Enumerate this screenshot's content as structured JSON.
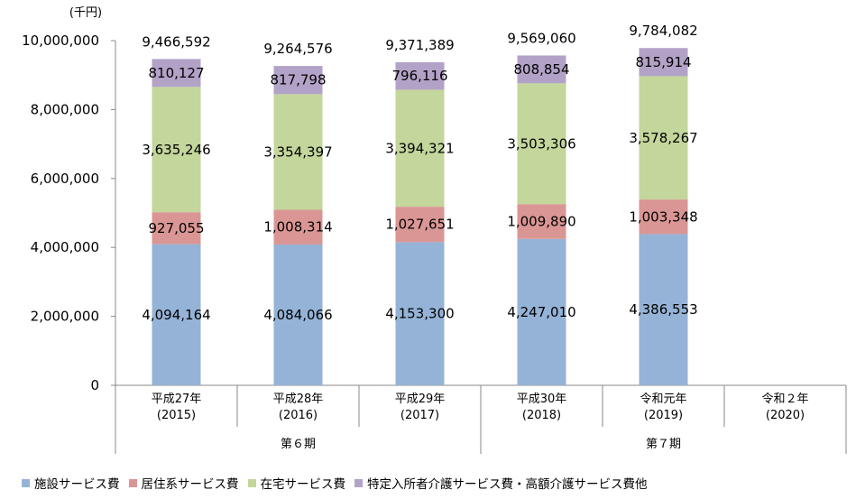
{
  "chart_data": {
    "type": "bar",
    "stacked": true,
    "unit_label": "(千円)",
    "categories": [
      {
        "label": "平成27年",
        "year": "(2015)"
      },
      {
        "label": "平成28年",
        "year": "(2016)"
      },
      {
        "label": "平成29年",
        "year": "(2017)"
      },
      {
        "label": "平成30年",
        "year": "(2018)"
      },
      {
        "label": "令和元年",
        "year": "(2019)"
      },
      {
        "label": "令和２年",
        "year": "(2020)"
      }
    ],
    "groups": [
      {
        "label": "第６期",
        "categories": [
          0,
          1,
          2
        ]
      },
      {
        "label": "第７期",
        "categories": [
          3,
          4,
          5
        ]
      }
    ],
    "series": [
      {
        "name": "施設サービス費",
        "color": "#95b3d7",
        "values": [
          4094164,
          4084066,
          4153300,
          4247010,
          4386553,
          null
        ],
        "labels": [
          "4,094,164",
          "4,084,066",
          "4,153,300",
          "4,247,010",
          "4,386,553",
          null
        ]
      },
      {
        "name": "居住系サービス費",
        "color": "#da9694",
        "values": [
          927055,
          1008314,
          1027651,
          1009890,
          1003348,
          null
        ],
        "labels": [
          "927,055",
          "1,008,314",
          "1,027,651",
          "1,009,890",
          "1,003,348",
          null
        ]
      },
      {
        "name": "在宅サービス費",
        "color": "#c3d69b",
        "values": [
          3635246,
          3354397,
          3394321,
          3503306,
          3578267,
          null
        ],
        "labels": [
          "3,635,246",
          "3,354,397",
          "3,394,321",
          "3,503,306",
          "3,578,267",
          null
        ]
      },
      {
        "name": "特定入所者介護サービス費・高額介護サービス費他",
        "color": "#b3a2c7",
        "values": [
          810127,
          817798,
          796116,
          808854,
          815914,
          null
        ],
        "labels": [
          "810,127",
          "817,798",
          "796,116",
          "808,854",
          "815,914",
          null
        ]
      }
    ],
    "totals": [
      9466592,
      9264576,
      9371389,
      9569060,
      9784082,
      null
    ],
    "total_labels": [
      "9,466,592",
      "9,264,576",
      "9,371,389",
      "9,569,060",
      "9,784,082",
      null
    ],
    "ylim": [
      0,
      10000000
    ],
    "yticks": [
      0,
      2000000,
      4000000,
      6000000,
      8000000,
      10000000
    ],
    "ytick_labels": [
      "0",
      "2,000,000",
      "4,000,000",
      "6,000,000",
      "8,000,000",
      "10,000,000"
    ],
    "legend_position": "bottom",
    "grid": false
  }
}
